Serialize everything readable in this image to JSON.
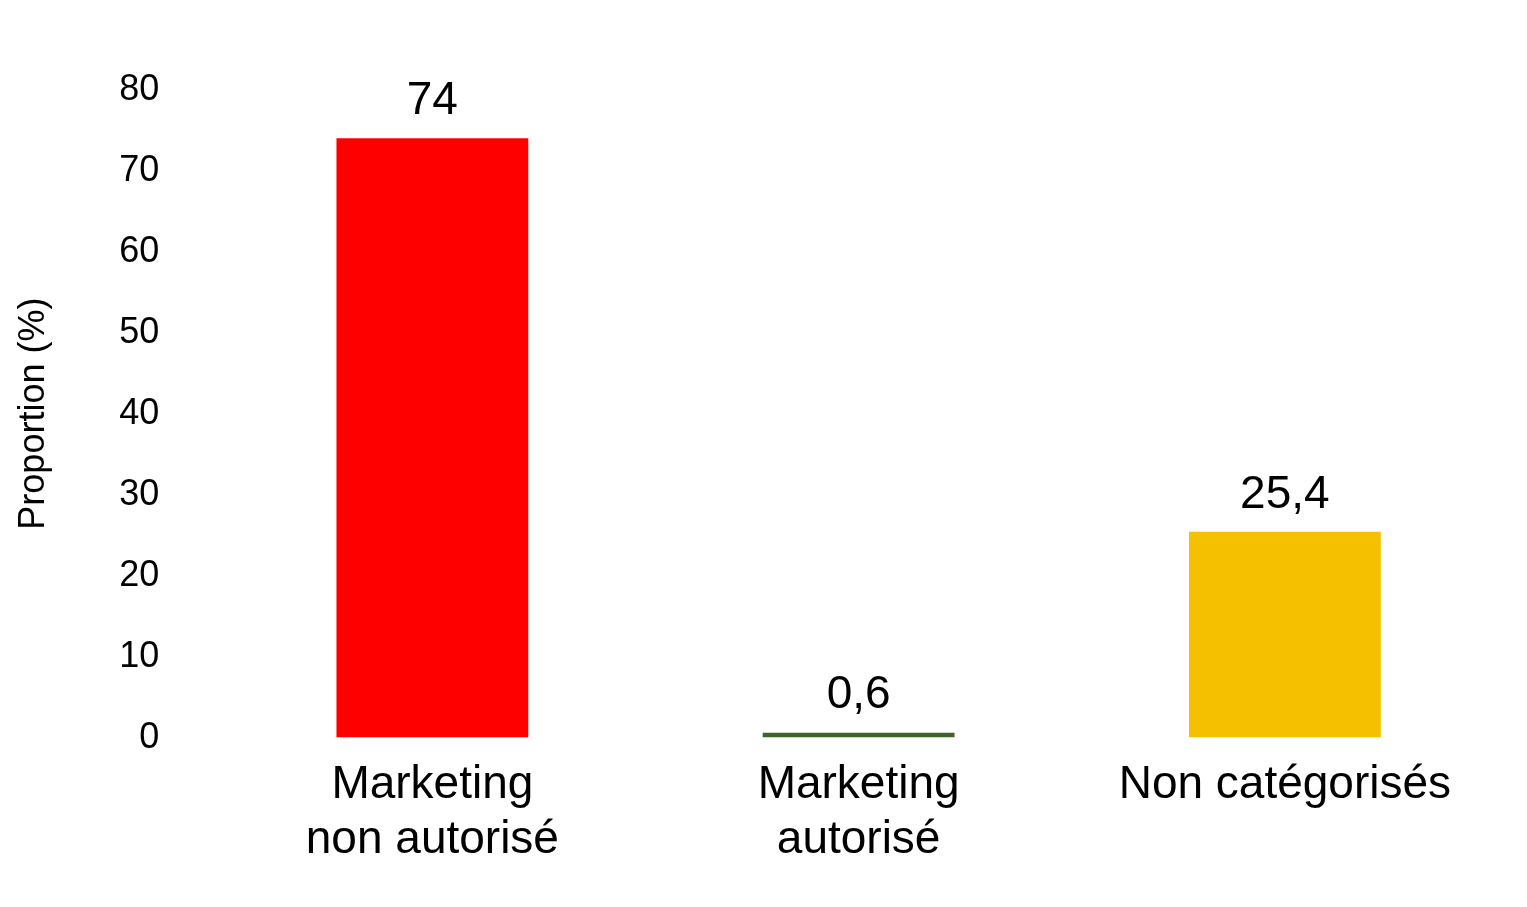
{
  "chart_data": {
    "type": "bar",
    "ylabel": "Proportion (%)",
    "categories": [
      "Marketing non autorisé",
      "Marketing autorisé",
      "Non catégorisés"
    ],
    "values": [
      74,
      0.6,
      25.4
    ],
    "colors": [
      "#ff0000",
      "#3f6428",
      "#f5c000"
    ],
    "value_labels": [
      "74",
      "0,6",
      "25,4"
    ],
    "ylim": [
      0,
      80
    ],
    "yticks": [
      0,
      10,
      20,
      30,
      40,
      50,
      60,
      70,
      80
    ],
    "grid": false,
    "legend": false
  }
}
